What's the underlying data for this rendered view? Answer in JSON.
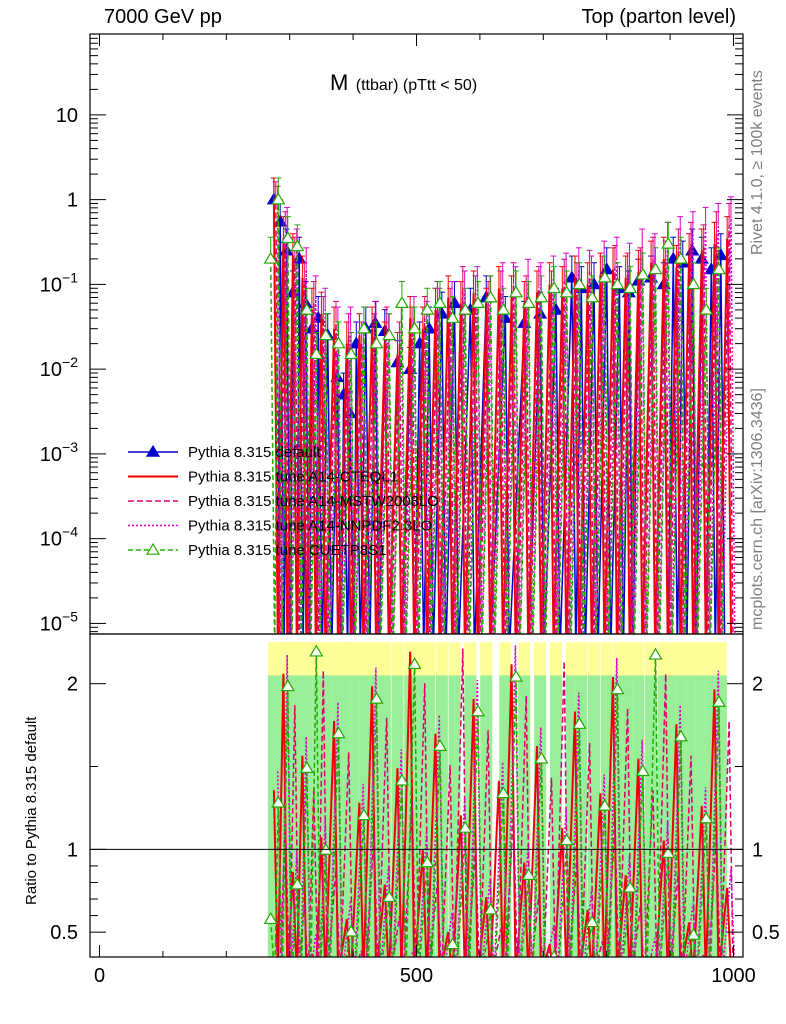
{
  "header": {
    "left": "7000 GeV pp",
    "right": "Top (parton level)"
  },
  "side_labels": {
    "rivet": "Rivet 4.1.0, ≥ 100k events",
    "mcplots": "mcplots.cern.ch [arXiv:1306.3436]"
  },
  "chart_data": {
    "type": "line",
    "title_main": "M",
    "title_sub": "(ttbar) (pTtt < 50)",
    "x_ticks": [
      {
        "v": 0,
        "label": "0"
      },
      {
        "v": 500,
        "label": "500"
      },
      {
        "v": 1000,
        "label": "1000"
      }
    ],
    "y_ticks": [
      {
        "v": 10,
        "label": "10"
      },
      {
        "v": 1,
        "label": "1"
      },
      {
        "v": 0.1,
        "base": "10",
        "exp": "−1"
      },
      {
        "v": 0.01,
        "base": "10",
        "exp": "−2"
      },
      {
        "v": 0.001,
        "base": "10",
        "exp": "−3"
      },
      {
        "v": 0.0001,
        "base": "10",
        "exp": "−4"
      },
      {
        "v": 1e-05,
        "base": "10",
        "exp": "−5"
      }
    ],
    "xlim": [
      -15,
      1015
    ],
    "ylim_log": [
      7.5e-06,
      90
    ],
    "ratio_ylim": [
      0.35,
      2.3
    ],
    "ratio_ticks": [
      {
        "v": 0.5,
        "label": "0.5"
      },
      {
        "v": 1,
        "label": "1"
      },
      {
        "v": 2,
        "label": "2"
      }
    ],
    "ratio_ylabel": "Ratio to Pythia 8.315 default",
    "legend": [
      {
        "name": "Pythia 8.315 default",
        "color": "#0000cc",
        "dash": "",
        "marker": "tri-filled"
      },
      {
        "name": "Pythia 8.315 tune A14-CTEQL1",
        "color": "#ee0000",
        "dash": "",
        "marker": "none"
      },
      {
        "name": "Pythia 8.315 tune A14-MSTW2008LO",
        "color": "#e0006e",
        "dash": "6,3",
        "marker": "none"
      },
      {
        "name": "Pythia 8.315 tune A14-NNPDF2.3LO",
        "color": "#dd00cc",
        "dash": "2,2",
        "marker": "none"
      },
      {
        "name": "Pythia 8.315 tune CUETP8S1",
        "color": "#22aa00",
        "dash": "5,3",
        "marker": "tri-open"
      }
    ],
    "series": [
      {
        "name": "Pythia 8.315 default",
        "x": [
          275,
          285,
          295,
          305,
          315,
          325,
          335,
          345,
          360,
          375,
          385,
          395,
          405,
          420,
          435,
          450,
          470,
          490,
          505,
          520,
          540,
          560,
          585,
          610,
          640,
          670,
          695,
          720,
          745,
          760,
          780,
          800,
          820,
          835,
          850,
          870,
          890,
          905,
          920,
          935,
          950,
          965,
          980
        ],
        "y": [
          1.0,
          0.55,
          0.25,
          0.08,
          0.2,
          0.06,
          0.03,
          0.04,
          0.025,
          0.008,
          0.005,
          0.003,
          0.02,
          0.03,
          0.035,
          0.028,
          0.012,
          0.01,
          0.02,
          0.03,
          0.045,
          0.06,
          0.05,
          0.07,
          0.04,
          0.035,
          0.045,
          0.05,
          0.12,
          0.09,
          0.1,
          0.15,
          0.09,
          0.08,
          0.11,
          0.12,
          0.1,
          0.2,
          0.18,
          0.25,
          0.2,
          0.15,
          0.22
        ]
      },
      {
        "name": "Pythia 8.315 tune A14-CTEQL1",
        "x": [
          275,
          290,
          305,
          320,
          335,
          350,
          370,
          390,
          410,
          430,
          450,
          470,
          490,
          510,
          530,
          550,
          570,
          590,
          610,
          630,
          650,
          670,
          690,
          710,
          730,
          750,
          770,
          790,
          810,
          830,
          850,
          870,
          890,
          910,
          930,
          950,
          970,
          990
        ],
        "y": [
          1.0,
          0.35,
          0.22,
          0.12,
          0.05,
          0.045,
          0.03,
          0.02,
          0.025,
          0.03,
          0.02,
          0.015,
          0.04,
          0.03,
          0.05,
          0.07,
          0.06,
          0.08,
          0.05,
          0.09,
          0.07,
          0.06,
          0.08,
          0.1,
          0.09,
          0.12,
          0.1,
          0.13,
          0.15,
          0.12,
          0.14,
          0.18,
          0.2,
          0.16,
          0.22,
          0.25,
          0.3,
          0.35
        ]
      },
      {
        "name": "Pythia 8.315 tune A14-MSTW2008LO",
        "x": [
          278,
          293,
          308,
          323,
          338,
          353,
          373,
          393,
          413,
          433,
          453,
          473,
          493,
          513,
          533,
          553,
          573,
          593,
          613,
          633,
          653,
          673,
          693,
          713,
          733,
          753,
          773,
          793,
          813,
          833,
          853,
          873,
          893,
          913,
          933,
          953,
          973,
          993
        ],
        "y": [
          0.9,
          0.4,
          0.2,
          0.1,
          0.06,
          0.04,
          0.035,
          0.025,
          0.02,
          0.025,
          0.03,
          0.02,
          0.03,
          0.04,
          0.06,
          0.05,
          0.09,
          0.07,
          0.06,
          0.08,
          0.1,
          0.07,
          0.09,
          0.08,
          0.11,
          0.1,
          0.14,
          0.12,
          0.16,
          0.13,
          0.15,
          0.2,
          0.18,
          0.25,
          0.3,
          0.28,
          0.4,
          0.5
        ]
      },
      {
        "name": "Pythia 8.315 tune A14-NNPDF2.3LO",
        "x": [
          281,
          296,
          311,
          326,
          341,
          356,
          376,
          396,
          416,
          436,
          456,
          476,
          496,
          516,
          536,
          556,
          576,
          596,
          616,
          636,
          656,
          676,
          696,
          716,
          736,
          756,
          776,
          796,
          816,
          836,
          856,
          876,
          896,
          916,
          936,
          956,
          976,
          996
        ],
        "y": [
          0.8,
          0.45,
          0.25,
          0.15,
          0.07,
          0.05,
          0.03,
          0.03,
          0.02,
          0.035,
          0.025,
          0.03,
          0.04,
          0.035,
          0.05,
          0.06,
          0.08,
          0.09,
          0.07,
          0.1,
          0.09,
          0.11,
          0.1,
          0.12,
          0.13,
          0.15,
          0.12,
          0.18,
          0.2,
          0.17,
          0.25,
          0.22,
          0.3,
          0.35,
          0.4,
          0.45,
          0.5,
          0.6
        ]
      },
      {
        "name": "Pythia 8.315 tune CUETP8S1",
        "x": [
          270,
          282,
          297,
          312,
          327,
          342,
          357,
          377,
          397,
          417,
          437,
          457,
          477,
          497,
          517,
          537,
          557,
          577,
          597,
          617,
          637,
          657,
          677,
          697,
          717,
          737,
          757,
          777,
          797,
          817,
          837,
          857,
          877,
          897,
          917,
          937,
          957,
          977
        ],
        "y": [
          0.2,
          1.0,
          0.35,
          0.28,
          0.05,
          0.015,
          0.025,
          0.02,
          0.015,
          0.03,
          0.02,
          0.025,
          0.06,
          0.03,
          0.05,
          0.06,
          0.04,
          0.05,
          0.06,
          0.07,
          0.05,
          0.08,
          0.06,
          0.07,
          0.09,
          0.08,
          0.1,
          0.07,
          0.12,
          0.1,
          0.09,
          0.13,
          0.15,
          0.3,
          0.2,
          0.1,
          0.05,
          0.15
        ]
      }
    ]
  }
}
